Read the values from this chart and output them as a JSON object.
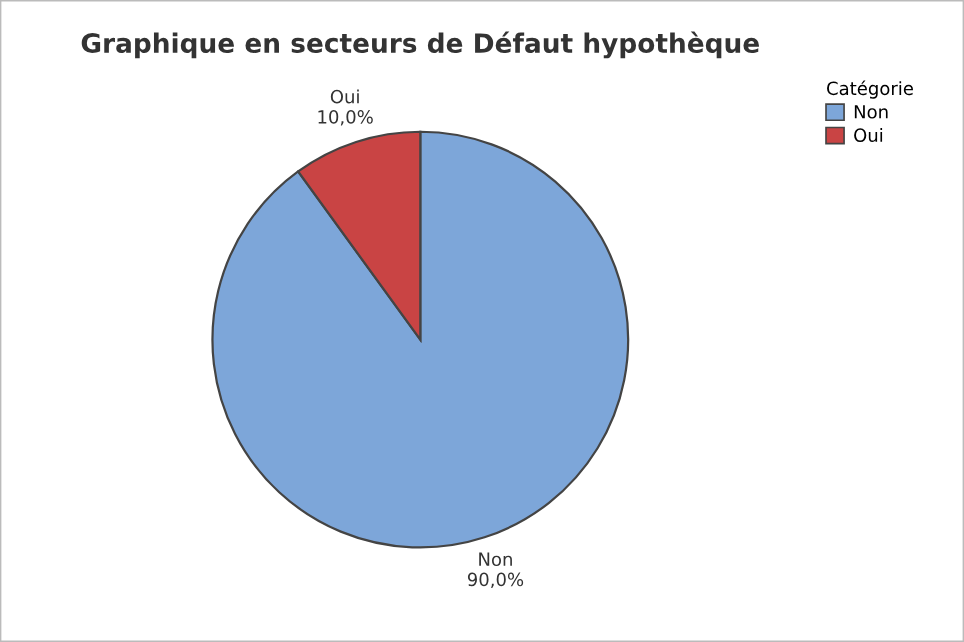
{
  "chart_data": {
    "type": "pie",
    "title": "Graphique en secteurs de Défaut hypothèque",
    "categories": [
      "Non",
      "Oui"
    ],
    "values": [
      90,
      10
    ],
    "value_labels": [
      "90,0%",
      "10,0%"
    ],
    "colors": [
      "#7da6d9",
      "#c94444"
    ],
    "legend_title": "Catégorie",
    "legend": "top right"
  }
}
